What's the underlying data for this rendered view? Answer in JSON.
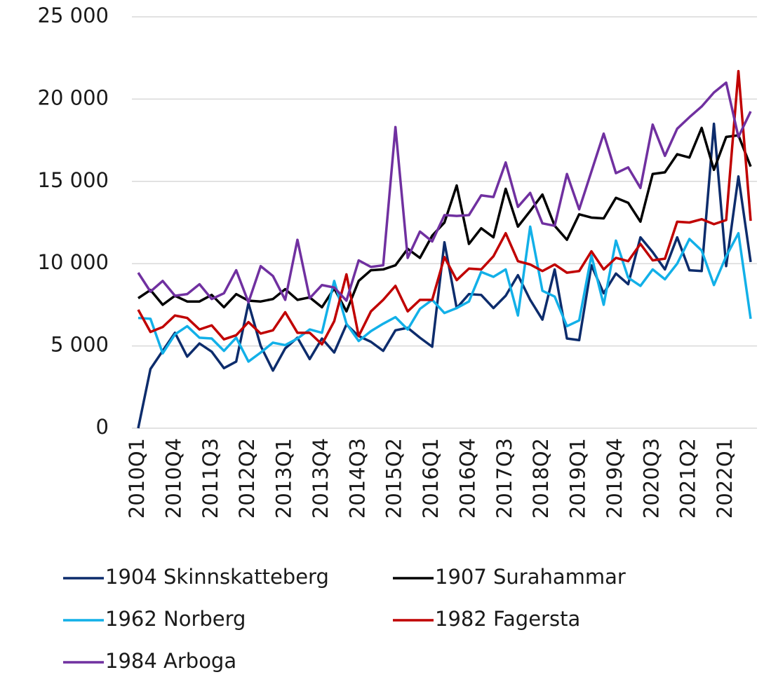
{
  "chart_data": {
    "type": "line",
    "categories": [
      "2010Q1",
      null,
      null,
      "2010Q4",
      null,
      null,
      "2011Q3",
      null,
      null,
      "2012Q2",
      null,
      null,
      "2013Q1",
      null,
      null,
      "2013Q4",
      null,
      null,
      "2014Q3",
      null,
      null,
      "2015Q2",
      null,
      null,
      "2016Q1",
      null,
      null,
      "2016Q4",
      null,
      null,
      "2017Q3",
      null,
      null,
      "2018Q2",
      null,
      null,
      "2019Q1",
      null,
      null,
      "2019Q4",
      null,
      null,
      "2020Q3",
      null,
      null,
      "2021Q2",
      null,
      null,
      "2022Q1",
      null,
      null
    ],
    "series": [
      {
        "name": "1904 Skinnskatteberg",
        "color": "#0d2c6c",
        "values": [
          0,
          3600,
          4700,
          5800,
          4350,
          5150,
          4650,
          3650,
          4050,
          7600,
          5000,
          3500,
          4850,
          5500,
          4200,
          5450,
          4600,
          6300,
          5600,
          5250,
          4700,
          5950,
          6100,
          5500,
          4950,
          11300,
          7300,
          8150,
          8100,
          7300,
          8050,
          9300,
          7800,
          6600,
          9650,
          5450,
          5350,
          9900,
          8200,
          9400,
          8750,
          11600,
          10700,
          9650,
          11600,
          9600,
          9550,
          18500,
          9850,
          15300,
          10100
        ]
      },
      {
        "name": "1907 Surahammar",
        "color": "#000000",
        "values": [
          7900,
          8400,
          7500,
          8050,
          7700,
          7700,
          8100,
          7350,
          8150,
          7750,
          7700,
          7850,
          8450,
          7800,
          7950,
          7350,
          8500,
          7100,
          8950,
          9600,
          9650,
          9900,
          10900,
          10350,
          11700,
          12500,
          14750,
          11200,
          12150,
          11600,
          14550,
          12250,
          13200,
          14200,
          12300,
          11450,
          13000,
          12800,
          12750,
          14000,
          13700,
          12550,
          15450,
          15550,
          16650,
          16450,
          18250,
          15700,
          17700,
          17800,
          15900
        ]
      },
      {
        "name": "1962 Norberg",
        "color": "#12b0e8",
        "values": [
          6700,
          6650,
          4550,
          5700,
          6200,
          5500,
          5450,
          4700,
          5500,
          4050,
          4600,
          5200,
          5050,
          5450,
          6000,
          5800,
          8950,
          6350,
          5300,
          5900,
          6350,
          6750,
          6000,
          7250,
          7800,
          7000,
          7300,
          7700,
          9500,
          9200,
          9650,
          6850,
          12250,
          8350,
          8000,
          6200,
          6550,
          10500,
          7500,
          11400,
          9150,
          8650,
          9650,
          9050,
          10000,
          11500,
          10800,
          8700,
          10450,
          11850,
          6650
        ]
      },
      {
        "name": "1982 Fagersta",
        "color": "#c00000",
        "values": [
          7200,
          5850,
          6150,
          6850,
          6700,
          6000,
          6250,
          5400,
          5650,
          6450,
          5750,
          5950,
          7050,
          5800,
          5800,
          5100,
          6500,
          9350,
          5600,
          7100,
          7800,
          8650,
          7100,
          7800,
          7800,
          10400,
          9000,
          9700,
          9650,
          10450,
          11850,
          10150,
          9950,
          9550,
          9950,
          9450,
          9550,
          10750,
          9650,
          10350,
          10150,
          11200,
          10200,
          10300,
          12550,
          12500,
          12700,
          12400,
          12650,
          21700,
          12600
        ]
      },
      {
        "name": "1984 Arboga",
        "color": "#7030a0",
        "values": [
          9450,
          8300,
          8950,
          8050,
          8150,
          8750,
          7850,
          8200,
          9600,
          7650,
          9850,
          9250,
          7800,
          11450,
          7900,
          8700,
          8550,
          7750,
          10200,
          9800,
          9900,
          18300,
          10350,
          11950,
          11350,
          12950,
          12900,
          12950,
          14150,
          14050,
          16150,
          13450,
          14300,
          12450,
          12300,
          15450,
          13300,
          15600,
          17900,
          15500,
          15850,
          14600,
          18450,
          16550,
          18200,
          18900,
          19550,
          20400,
          21000,
          17700,
          19250
        ]
      }
    ],
    "ylim": [
      0,
      25000
    ],
    "yticks": [
      0,
      {
        "value": 5000,
        "label": "5 000"
      },
      {
        "value": 10000,
        "label": "10 000"
      },
      {
        "value": 15000,
        "label": "15 000"
      },
      {
        "value": 20000,
        "label": "20 000"
      },
      {
        "value": 25000,
        "label": "25 000"
      }
    ],
    "grid": true
  }
}
